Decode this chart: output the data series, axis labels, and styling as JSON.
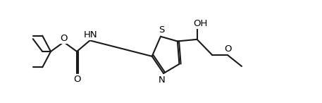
{
  "bg_color": "#ffffff",
  "line_color": "#1a1a1a",
  "line_width": 1.5,
  "font_size": 9.5,
  "figsize": [
    4.57,
    1.46
  ],
  "dpi": 100,
  "xlim": [
    0.0,
    4.6
  ],
  "ylim": [
    0.05,
    1.15
  ]
}
